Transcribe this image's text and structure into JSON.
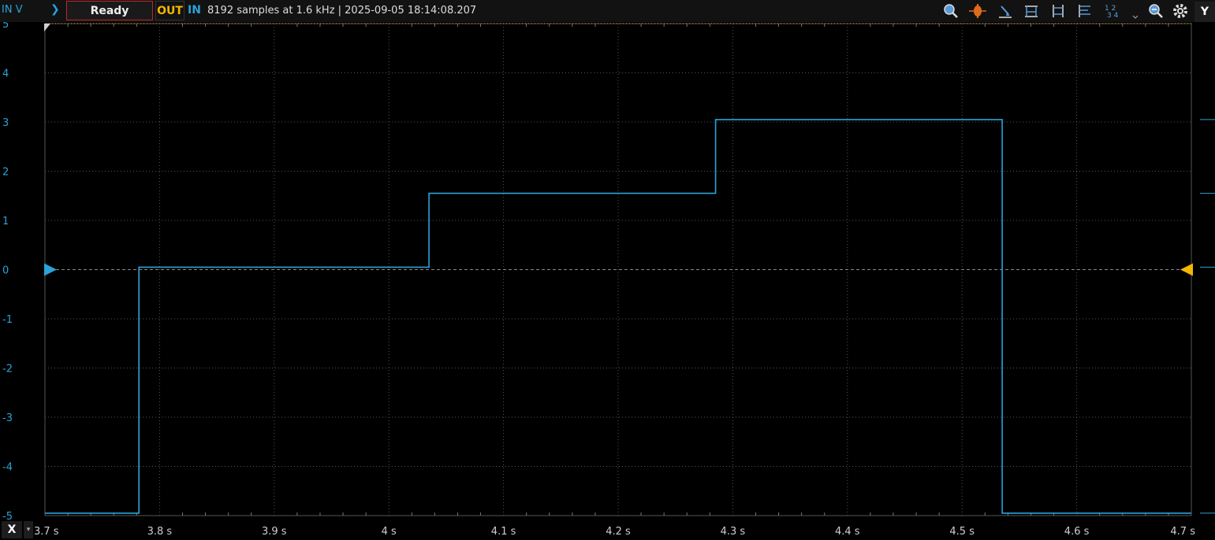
{
  "toolbar": {
    "y_axis_label": "IN V",
    "run_state": "Ready",
    "out_label": "OUT",
    "in_label": "IN",
    "status_text": "8192 samples at 1.6 kHz  | 2025-09-05 18:14:08.207",
    "y_channel_label": "Y",
    "x_channel_label": "X",
    "tools": [
      "zoom-in-icon",
      "cursor-icon",
      "trigger-level-icon",
      "horizontal-cursor-icon",
      "vertical-cursor-icon",
      "measurement-icon",
      "channel-layout-icon",
      "dropdown-icon",
      "zoom-out-icon",
      "settings-gear-icon"
    ],
    "channel_layout_text": "1 2\n3 4"
  },
  "colors": {
    "in_channel": "#29a3d8",
    "out_channel": "#f2b701",
    "ready_border": "#c0262d",
    "grid": "#555555"
  },
  "chart_data": {
    "type": "line",
    "title": "",
    "xlabel": "",
    "ylabel": "IN V",
    "xlim": [
      3.7,
      4.7
    ],
    "ylim": [
      -5,
      5
    ],
    "x_ticks": [
      3.7,
      3.8,
      3.9,
      4.0,
      4.1,
      4.2,
      4.3,
      4.4,
      4.5,
      4.6,
      4.7
    ],
    "x_tick_labels": [
      "3.7 s",
      "3.8 s",
      "3.9 s",
      "4 s",
      "4.1 s",
      "4.2 s",
      "4.3 s",
      "4.4 s",
      "4.5 s",
      "4.6 s",
      "4.7 s"
    ],
    "y_ticks": [
      5,
      4,
      3,
      2,
      1,
      0,
      -1,
      -2,
      -3,
      -4,
      -5
    ],
    "y_tick_labels": [
      "5",
      "4",
      "3",
      "2",
      "1",
      "0",
      "-1",
      "-2",
      "-3",
      "-4",
      "-5"
    ],
    "grid": true,
    "series": [
      {
        "name": "IN",
        "color": "#29a3d8",
        "x": [
          3.7,
          3.782,
          3.782,
          4.035,
          4.035,
          4.285,
          4.285,
          4.535,
          4.535,
          4.7
        ],
        "y": [
          -4.95,
          -4.95,
          0.05,
          0.05,
          1.55,
          1.55,
          3.05,
          3.05,
          -4.95,
          -4.95
        ]
      }
    ],
    "markers": {
      "in_zero": 0,
      "out_zero": 0
    }
  }
}
